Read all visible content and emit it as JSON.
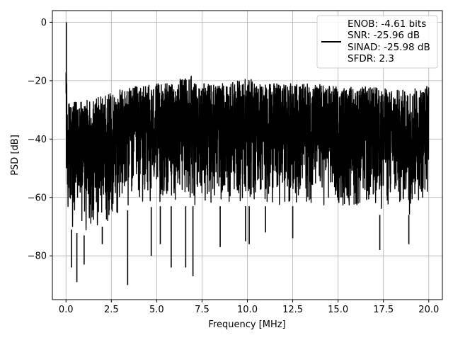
{
  "chart_data": {
    "type": "line",
    "xlabel": "Frequency [MHz]",
    "ylabel": "PSD [dB]",
    "xlim": [
      -0.75,
      20.75
    ],
    "ylim": [
      -95,
      4
    ],
    "xticks": [
      0.0,
      2.5,
      5.0,
      7.5,
      10.0,
      12.5,
      15.0,
      17.5,
      20.0
    ],
    "xtick_labels": [
      "0.0",
      "2.5",
      "5.0",
      "7.5",
      "10.0",
      "12.5",
      "15.0",
      "17.5",
      "20.0"
    ],
    "yticks": [
      0,
      -20,
      -40,
      -60,
      -80
    ],
    "ytick_labels": [
      "0",
      "−20",
      "−40",
      "−60",
      "−80"
    ],
    "grid": true,
    "legend_position": "top-right",
    "series_color": "#000000",
    "legend_lines": [
      "ENOB: -4.61 bits",
      "SNR: -25.96 dB",
      "SINAD: -25.98 dB",
      "SFDR: 2.3"
    ],
    "series": [
      {
        "x": [
          0.0,
          0.02,
          0.05,
          0.1,
          0.5,
          1.0,
          1.5,
          2.0,
          2.5,
          3.0,
          3.5,
          4.0,
          5.0,
          6.0,
          6.9,
          7.0,
          8.0,
          9.0,
          10.0,
          11.0,
          12.0,
          13.0,
          14.0,
          15.0,
          16.0,
          17.0,
          18.0,
          19.0,
          20.0
        ],
        "y_upper": [
          -16,
          0,
          -26,
          -27,
          -27,
          -27,
          -26,
          -25,
          -24,
          -23,
          -22,
          -22,
          -21,
          -21,
          -16,
          -21,
          -21,
          -21,
          -19,
          -21,
          -21,
          -21,
          -21,
          -22,
          -22,
          -22,
          -23,
          -23,
          -21
        ],
        "y_lower": [
          -50,
          -50,
          -65,
          -70,
          -72,
          -73,
          -72,
          -70,
          -68,
          -66,
          -64,
          -64,
          -63,
          -63,
          -63,
          -63,
          -63,
          -63,
          -63,
          -63,
          -63,
          -63,
          -64,
          -65,
          -65,
          -66,
          -66,
          -66,
          -60
        ]
      }
    ],
    "dips": [
      {
        "x": 0.3,
        "y": -84
      },
      {
        "x": 0.6,
        "y": -89
      },
      {
        "x": 1.0,
        "y": -83
      },
      {
        "x": 2.0,
        "y": -76
      },
      {
        "x": 3.4,
        "y": -90
      },
      {
        "x": 4.7,
        "y": -80
      },
      {
        "x": 5.2,
        "y": -76
      },
      {
        "x": 5.8,
        "y": -84
      },
      {
        "x": 6.6,
        "y": -84
      },
      {
        "x": 7.0,
        "y": -87
      },
      {
        "x": 8.5,
        "y": -77
      },
      {
        "x": 9.9,
        "y": -75
      },
      {
        "x": 10.1,
        "y": -76
      },
      {
        "x": 11.0,
        "y": -72
      },
      {
        "x": 12.5,
        "y": -74
      },
      {
        "x": 17.3,
        "y": -78
      },
      {
        "x": 18.9,
        "y": -76
      }
    ]
  }
}
